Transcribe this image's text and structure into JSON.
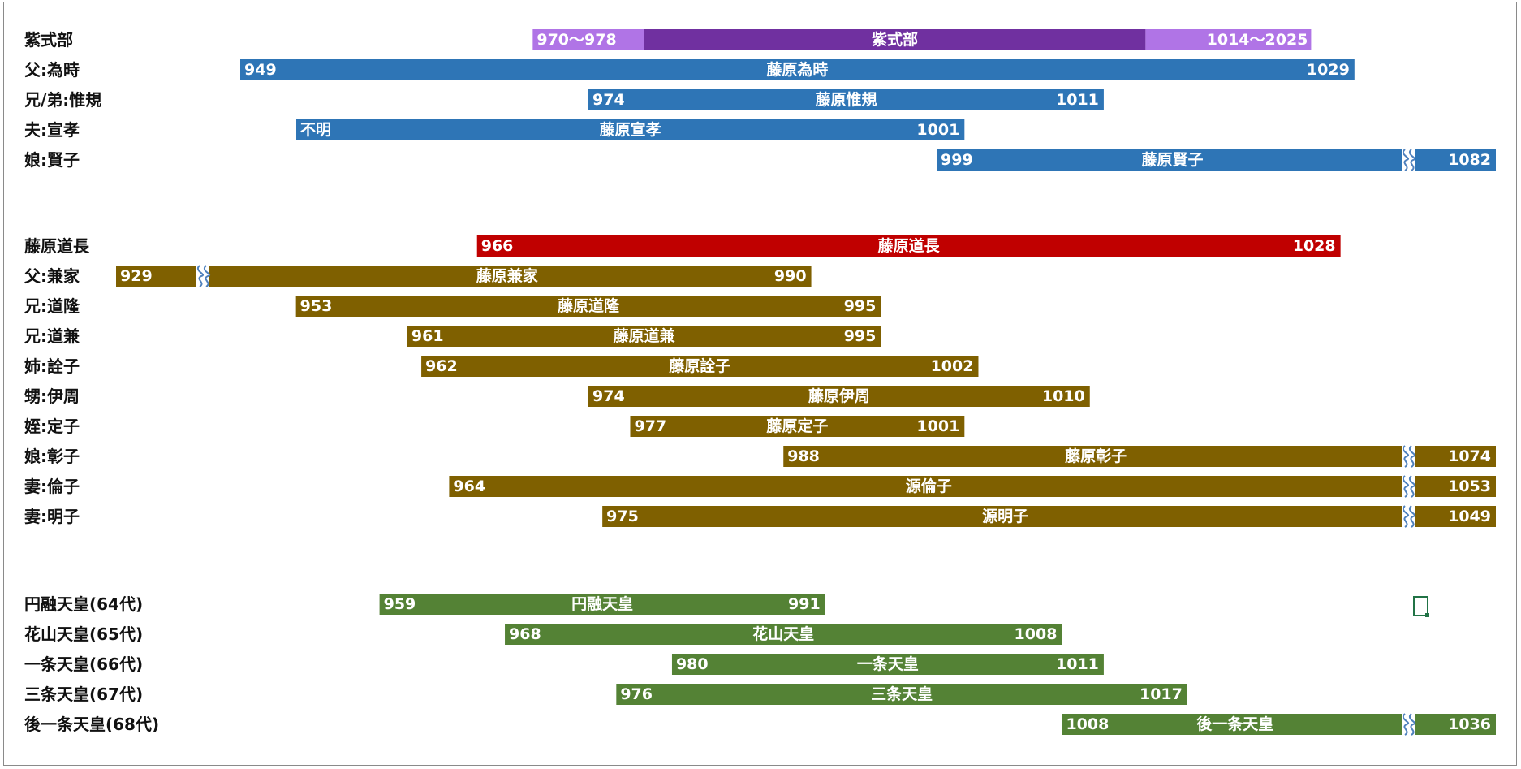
{
  "chart_data": {
    "type": "gantt",
    "colors": {
      "purple_dark": "#7030a0",
      "purple_light": "#b074e6",
      "blue": "#2e75b6",
      "red": "#c00000",
      "brown": "#7f6000",
      "green": "#548235"
    },
    "groups": [
      {
        "rows": [
          {
            "label": "紫式部",
            "color": "purple_dark",
            "start": 978,
            "end": 1014,
            "name": "紫式部",
            "start_text": "970〜978",
            "end_text": "1014〜2025",
            "start_range": [
              970,
              978
            ],
            "end_range": [
              1014,
              2025
            ]
          },
          {
            "label": "父:為時",
            "color": "blue",
            "start": 949,
            "end": 1029,
            "name": "藤原為時",
            "start_text": "949",
            "end_text": "1029"
          },
          {
            "label": "兄/弟:惟規",
            "color": "blue",
            "start": 974,
            "end": 1011,
            "name": "藤原惟規",
            "start_text": "974",
            "end_text": "1011"
          },
          {
            "label": "夫:宣孝",
            "color": "blue",
            "start": null,
            "end": 1001,
            "name": "藤原宣孝",
            "start_text": "不明",
            "end_text": "1001"
          },
          {
            "label": "娘:賢子",
            "color": "blue",
            "start": 999,
            "end": 1082,
            "name": "藤原賢子",
            "start_text": "999",
            "end_text": "1082",
            "break": "right"
          }
        ]
      },
      {
        "rows": [
          {
            "label": "藤原道長",
            "color": "red",
            "start": 966,
            "end": 1028,
            "name": "藤原道長",
            "start_text": "966",
            "end_text": "1028"
          },
          {
            "label": "父:兼家",
            "color": "brown",
            "start": 929,
            "end": 990,
            "name": "藤原兼家",
            "start_text": "929",
            "end_text": "990",
            "break": "left"
          },
          {
            "label": "兄:道隆",
            "color": "brown",
            "start": 953,
            "end": 995,
            "name": "藤原道隆",
            "start_text": "953",
            "end_text": "995"
          },
          {
            "label": "兄:道兼",
            "color": "brown",
            "start": 961,
            "end": 995,
            "name": "藤原道兼",
            "start_text": "961",
            "end_text": "995"
          },
          {
            "label": "姉:詮子",
            "color": "brown",
            "start": 962,
            "end": 1002,
            "name": "藤原詮子",
            "start_text": "962",
            "end_text": "1002"
          },
          {
            "label": "甥:伊周",
            "color": "brown",
            "start": 974,
            "end": 1010,
            "name": "藤原伊周",
            "start_text": "974",
            "end_text": "1010"
          },
          {
            "label": "姪:定子",
            "color": "brown",
            "start": 977,
            "end": 1001,
            "name": "藤原定子",
            "start_text": "977",
            "end_text": "1001"
          },
          {
            "label": "娘:彰子",
            "color": "brown",
            "start": 988,
            "end": 1074,
            "name": "藤原彰子",
            "start_text": "988",
            "end_text": "1074",
            "break": "right"
          },
          {
            "label": "妻:倫子",
            "color": "brown",
            "start": 964,
            "end": 1053,
            "name": "源倫子",
            "start_text": "964",
            "end_text": "1053",
            "break": "right"
          },
          {
            "label": "妻:明子",
            "color": "brown",
            "start": 975,
            "end": 1049,
            "name": "源明子",
            "start_text": "975",
            "end_text": "1049",
            "break": "right"
          }
        ]
      },
      {
        "rows": [
          {
            "label": "円融天皇(64代)",
            "color": "green",
            "start": 959,
            "end": 991,
            "name": "円融天皇",
            "start_text": "959",
            "end_text": "991"
          },
          {
            "label": "花山天皇(65代)",
            "color": "green",
            "start": 968,
            "end": 1008,
            "name": "花山天皇",
            "start_text": "968",
            "end_text": "1008"
          },
          {
            "label": "一条天皇(66代)",
            "color": "green",
            "start": 980,
            "end": 1011,
            "name": "一条天皇",
            "start_text": "980",
            "end_text": "1011"
          },
          {
            "label": "三条天皇(67代)",
            "color": "green",
            "start": 976,
            "end": 1017,
            "name": "三条天皇",
            "start_text": "976",
            "end_text": "1017"
          },
          {
            "label": "後一条天皇(68代)",
            "color": "green",
            "start": 1008,
            "end": 1036,
            "name": "後一条天皇",
            "start_text": "1008",
            "end_text": "1036",
            "break": "right"
          }
        ]
      }
    ]
  }
}
